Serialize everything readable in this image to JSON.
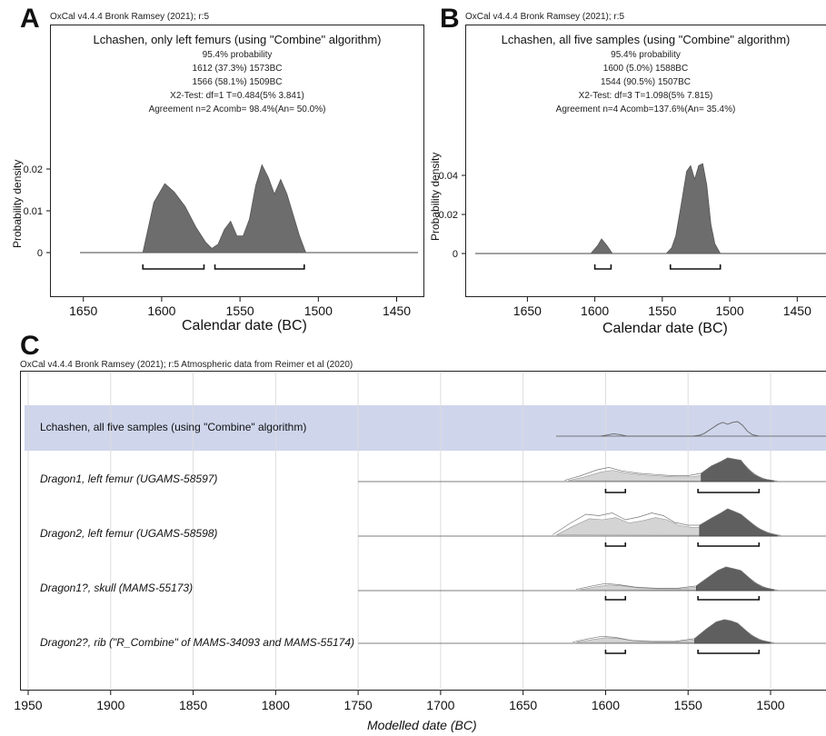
{
  "panels": {
    "A": {
      "letter": "A",
      "header": "OxCal v4.4.4 Bronk Ramsey (2021); r:5",
      "title": "Lchashen, only left femurs (using \"Combine\" algorithm)",
      "stats": [
        "95.4% probability",
        "1612 (37.3%) 1573BC",
        "1566 (58.1%) 1509BC",
        "X2-Test: df=1 T=0.484(5% 3.841)",
        "Agreement n=2 Acomb= 98.4%(An= 50.0%)"
      ],
      "ylabel": "Probability density",
      "xlabel": "Calendar date (BC)"
    },
    "B": {
      "letter": "B",
      "header": "OxCal v4.4.4 Bronk Ramsey (2021); r:5",
      "title": "Lchashen, all five samples (using \"Combine\" algorithm)",
      "stats": [
        "95.4% probability",
        "1600 (5.0%) 1588BC",
        "1544 (90.5%) 1507BC",
        "X2-Test: df=3 T=1.098(5% 7.815)",
        "Agreement n=4 Acomb=137.6%(An= 35.4%)"
      ],
      "ylabel": "Probability density",
      "xlabel": "Calendar date (BC)"
    },
    "C": {
      "letter": "C",
      "header": "OxCal v4.4.4 Bronk Ramsey (2021); r:5 Atmospheric data from Reimer et al (2020)",
      "xlabel": "Modelled date (BC)",
      "highlight_color": "#cfd6ec",
      "rows": [
        {
          "label": "Lchashen, all five samples (using \"Combine\" algorithm)",
          "italic": false
        },
        {
          "label": "Dragon1, left femur (UGAMS-58597)",
          "italic": true
        },
        {
          "label": "Dragon2, left femur (UGAMS-58598)",
          "italic": true
        },
        {
          "label": "Dragon1?, skull (MAMS-55173)",
          "italic": true
        },
        {
          "label_parts": [
            "Dragon2?, rib (\"R_Combine\" of ",
            "MAMS-34093 and MAMS-55174",
            ")"
          ],
          "italic": true
        }
      ]
    }
  },
  "chart_data": [
    {
      "id": "A",
      "type": "area",
      "title": "Lchashen, only left femurs (using \"Combine\" algorithm)",
      "xlabel": "Calendar date (BC)",
      "ylabel": "Probability density",
      "x_reversed": true,
      "xlim": [
        1680,
        1430
      ],
      "x_ticks": [
        1650,
        1600,
        1550,
        1500,
        1450
      ],
      "ylim": [
        -0.006,
        0.036
      ],
      "y_ticks": [
        0,
        0.01,
        0.02
      ],
      "y_tick_labels": [
        "0",
        "0.01",
        "0.02"
      ],
      "fill_color": "#6d6d6d",
      "x": [
        1612,
        1605,
        1598,
        1592,
        1585,
        1578,
        1572,
        1568,
        1564,
        1560,
        1556,
        1552,
        1548,
        1544,
        1540,
        1536,
        1532,
        1528,
        1524,
        1520,
        1516,
        1512,
        1508
      ],
      "y": [
        0,
        0.012,
        0.0165,
        0.0145,
        0.011,
        0.006,
        0.0025,
        0.001,
        0.002,
        0.0055,
        0.0075,
        0.004,
        0.004,
        0.008,
        0.016,
        0.021,
        0.018,
        0.014,
        0.0175,
        0.014,
        0.009,
        0.004,
        0
      ],
      "hpd_ranges": [
        [
          1612,
          1573
        ],
        [
          1566,
          1509
        ]
      ]
    },
    {
      "id": "B",
      "type": "area",
      "title": "Lchashen, all five samples (using \"Combine\" algorithm)",
      "xlabel": "Calendar date (BC)",
      "ylabel": "Probability density",
      "x_reversed": true,
      "xlim": [
        1690,
        1430
      ],
      "x_ticks": [
        1650,
        1600,
        1550,
        1500,
        1450
      ],
      "ylim": [
        -0.012,
        0.07
      ],
      "y_ticks": [
        0,
        0.02,
        0.04
      ],
      "y_tick_labels": [
        "0",
        "0.02",
        "0.04"
      ],
      "fill_color": "#6d6d6d",
      "x": [
        1603,
        1598,
        1595,
        1591,
        1587,
        1547,
        1543,
        1540,
        1536,
        1532,
        1529,
        1526,
        1523,
        1520,
        1517,
        1514,
        1511,
        1507
      ],
      "y": [
        0,
        0.004,
        0.0075,
        0.004,
        0,
        0,
        0.003,
        0.009,
        0.025,
        0.042,
        0.045,
        0.038,
        0.045,
        0.046,
        0.035,
        0.015,
        0.005,
        0
      ],
      "hpd_ranges": [
        [
          1600,
          1588
        ],
        [
          1544,
          1507
        ]
      ]
    },
    {
      "id": "C",
      "type": "area",
      "xlabel": "Modelled date (BC)",
      "x_reversed": true,
      "xlim": [
        1950,
        1460
      ],
      "x_ticks": [
        1950,
        1900,
        1850,
        1800,
        1750,
        1700,
        1650,
        1600,
        1550,
        1500
      ],
      "series": [
        {
          "name": "Lchashen, all five samples (using \"Combine\" algorithm)",
          "prior_start": 1630,
          "x": [
            1603,
            1598,
            1595,
            1591,
            1587,
            1547,
            1543,
            1540,
            1536,
            1532,
            1529,
            1526,
            1523,
            1520,
            1517,
            1514,
            1511,
            1507
          ],
          "y": [
            0,
            0.1,
            0.16,
            0.1,
            0,
            0,
            0.06,
            0.2,
            0.5,
            0.8,
            0.95,
            0.82,
            0.95,
            1,
            0.75,
            0.33,
            0.1,
            0
          ],
          "fill": false,
          "hpd_ranges": []
        },
        {
          "name": "Dragon1, left femur (UGAMS-58597)",
          "prior_start": 1750,
          "x": [
            1625,
            1615,
            1605,
            1598,
            1590,
            1580,
            1570,
            1560,
            1550,
            1542,
            1536,
            1530,
            1526,
            1522,
            1518,
            1514,
            1510,
            1505,
            1498
          ],
          "y": [
            0.05,
            0.25,
            0.5,
            0.6,
            0.45,
            0.35,
            0.3,
            0.25,
            0.25,
            0.35,
            0.65,
            0.85,
            1,
            0.95,
            0.9,
            0.55,
            0.3,
            0.12,
            0.03
          ],
          "fill": true,
          "hpd_ranges": [
            [
              1600,
              1588
            ],
            [
              1544,
              1507
            ]
          ]
        },
        {
          "name": "Dragon2, left femur (UGAMS-58598)",
          "prior_start": 1750,
          "x": [
            1632,
            1622,
            1612,
            1604,
            1596,
            1588,
            1580,
            1572,
            1565,
            1558,
            1550,
            1543,
            1536,
            1530,
            1526,
            1522,
            1518,
            1513,
            1508,
            1502,
            1496
          ],
          "y": [
            0.05,
            0.45,
            0.8,
            0.75,
            0.85,
            0.6,
            0.7,
            0.85,
            0.75,
            0.5,
            0.4,
            0.4,
            0.65,
            0.85,
            1,
            0.9,
            0.8,
            0.55,
            0.3,
            0.12,
            0.03
          ],
          "fill": true,
          "hpd_ranges": [
            [
              1600,
              1588
            ],
            [
              1544,
              1507
            ]
          ]
        },
        {
          "name": "Dragon1?, skull (MAMS-55173)",
          "prior_start": 1750,
          "x": [
            1618,
            1608,
            1600,
            1592,
            1582,
            1570,
            1556,
            1545,
            1538,
            1532,
            1527,
            1522,
            1518,
            1514,
            1510,
            1505,
            1498
          ],
          "y": [
            0.05,
            0.2,
            0.3,
            0.25,
            0.15,
            0.1,
            0.1,
            0.2,
            0.55,
            0.85,
            1,
            0.92,
            0.85,
            0.6,
            0.35,
            0.15,
            0.03
          ],
          "fill": true,
          "hpd_ranges": [
            [
              1600,
              1588
            ],
            [
              1544,
              1507
            ]
          ]
        },
        {
          "name": "Dragon2?, rib (\"R_Combine\" of MAMS-34093 and MAMS-55174)",
          "prior_start": 1750,
          "x": [
            1620,
            1610,
            1602,
            1594,
            1584,
            1572,
            1558,
            1546,
            1539,
            1533,
            1528,
            1524,
            1520,
            1516,
            1512,
            1507,
            1500
          ],
          "y": [
            0.05,
            0.2,
            0.3,
            0.25,
            0.12,
            0.08,
            0.08,
            0.2,
            0.6,
            0.9,
            1,
            0.95,
            0.85,
            0.6,
            0.35,
            0.15,
            0.03
          ],
          "fill": true,
          "hpd_ranges": [
            [
              1600,
              1588
            ],
            [
              1544,
              1507
            ]
          ]
        }
      ]
    }
  ]
}
